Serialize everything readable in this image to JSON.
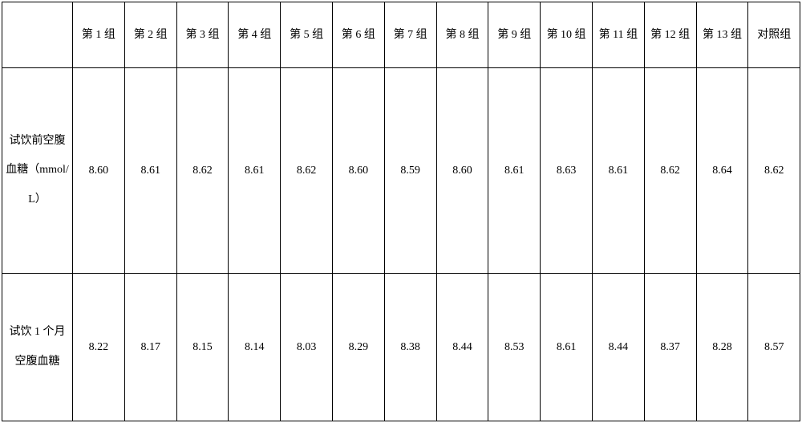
{
  "table": {
    "columns": [
      "",
      "第 1 组",
      "第 2 组",
      "第 3 组",
      "第 4 组",
      "第 5 组",
      "第 6 组",
      "第 7 组",
      "第 8 组",
      "第 9 组",
      "第 10 组",
      "第 11 组",
      "第 12 组",
      "第 13 组",
      "对照组"
    ],
    "rows": [
      {
        "label": "试饮前空腹血糖（mmol/L）",
        "values": [
          "8.60",
          "8.61",
          "8.62",
          "8.61",
          "8.62",
          "8.60",
          "8.59",
          "8.60",
          "8.61",
          "8.63",
          "8.61",
          "8.62",
          "8.64",
          "8.62"
        ]
      },
      {
        "label": "试饮 1 个月空腹血糖",
        "values": [
          "8.22",
          "8.17",
          "8.15",
          "8.14",
          "8.03",
          "8.29",
          "8.38",
          "8.44",
          "8.53",
          "8.61",
          "8.44",
          "8.37",
          "8.28",
          "8.57"
        ]
      }
    ],
    "border_color": "#000000",
    "text_color": "#000000",
    "background_color": "#ffffff",
    "font_family": "SimSun",
    "font_size": 14
  }
}
